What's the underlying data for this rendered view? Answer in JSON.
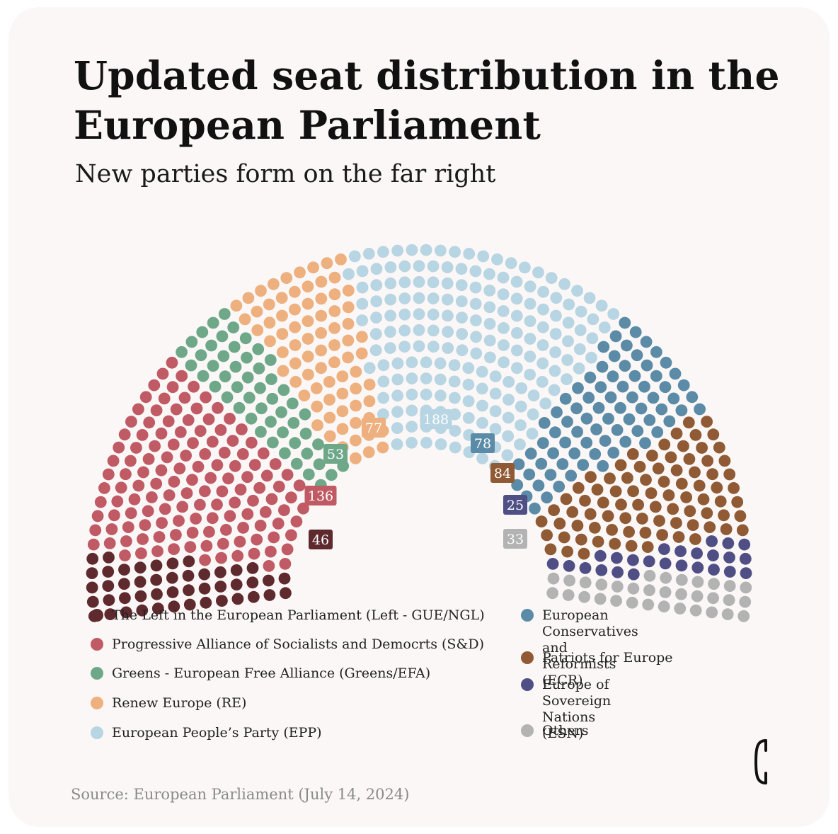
{
  "title": "Updated seat distribution in the European Parliament",
  "subtitle": "New parties form on the far right",
  "source": "Source: European Parliament (July 14, 2024)",
  "chart_data": {
    "type": "parliament",
    "series": [
      {
        "name": "The Left in the European Parliament (Left - GUE/NGL)",
        "value": 46,
        "color": "#5e2a2e"
      },
      {
        "name": "Progressive Alliance of Socialists and Democrts (S&D)",
        "value": 136,
        "color": "#c05a64"
      },
      {
        "name": "Greens - European Free Alliance (Greens/EFA)",
        "value": 53,
        "color": "#6ea889"
      },
      {
        "name": "Renew Europe (RE)",
        "value": 77,
        "color": "#edb07e"
      },
      {
        "name": "European People’s Party (EPP)",
        "value": 188,
        "color": "#b7d5e2"
      },
      {
        "name": "European Conservatives and Reformists (ECR)",
        "value": 78,
        "color": "#5b8ba6"
      },
      {
        "name": "Patriots for Europe",
        "value": 84,
        "color": "#8f5a34"
      },
      {
        "name": "Europe of Sovereign Nations (ESN)",
        "value": 25,
        "color": "#4f4f85"
      },
      {
        "name": "Others",
        "value": 33,
        "color": "#b3b3b3"
      }
    ],
    "value_labels": [
      "46",
      "136",
      "53",
      "77",
      "188",
      "78",
      "84",
      "25",
      "33"
    ]
  },
  "legend_left": [
    {
      "label": "The Left in the European Parliament (Left - GUE/NGL)",
      "color": "#5e2a2e"
    },
    {
      "label": "Progressive Alliance of Socialists and Democrts (S&D)",
      "color": "#c05a64"
    },
    {
      "label": "Greens - European Free Alliance (Greens/EFA)",
      "color": "#6ea889"
    },
    {
      "label": "Renew Europe (RE)",
      "color": "#edb07e"
    },
    {
      "label": "European People’s Party (EPP)",
      "color": "#b7d5e2"
    }
  ],
  "legend_right": [
    {
      "label": "European Conservatives and\nReformists (ECR)",
      "color": "#5b8ba6"
    },
    {
      "label": "Patriots for Europe",
      "color": "#8f5a34"
    },
    {
      "label": "Europe of Sovereign Nations\n(ESN)",
      "color": "#4f4f85"
    },
    {
      "label": "Others",
      "color": "#b3b3b3"
    }
  ],
  "logo_glyph": "C"
}
